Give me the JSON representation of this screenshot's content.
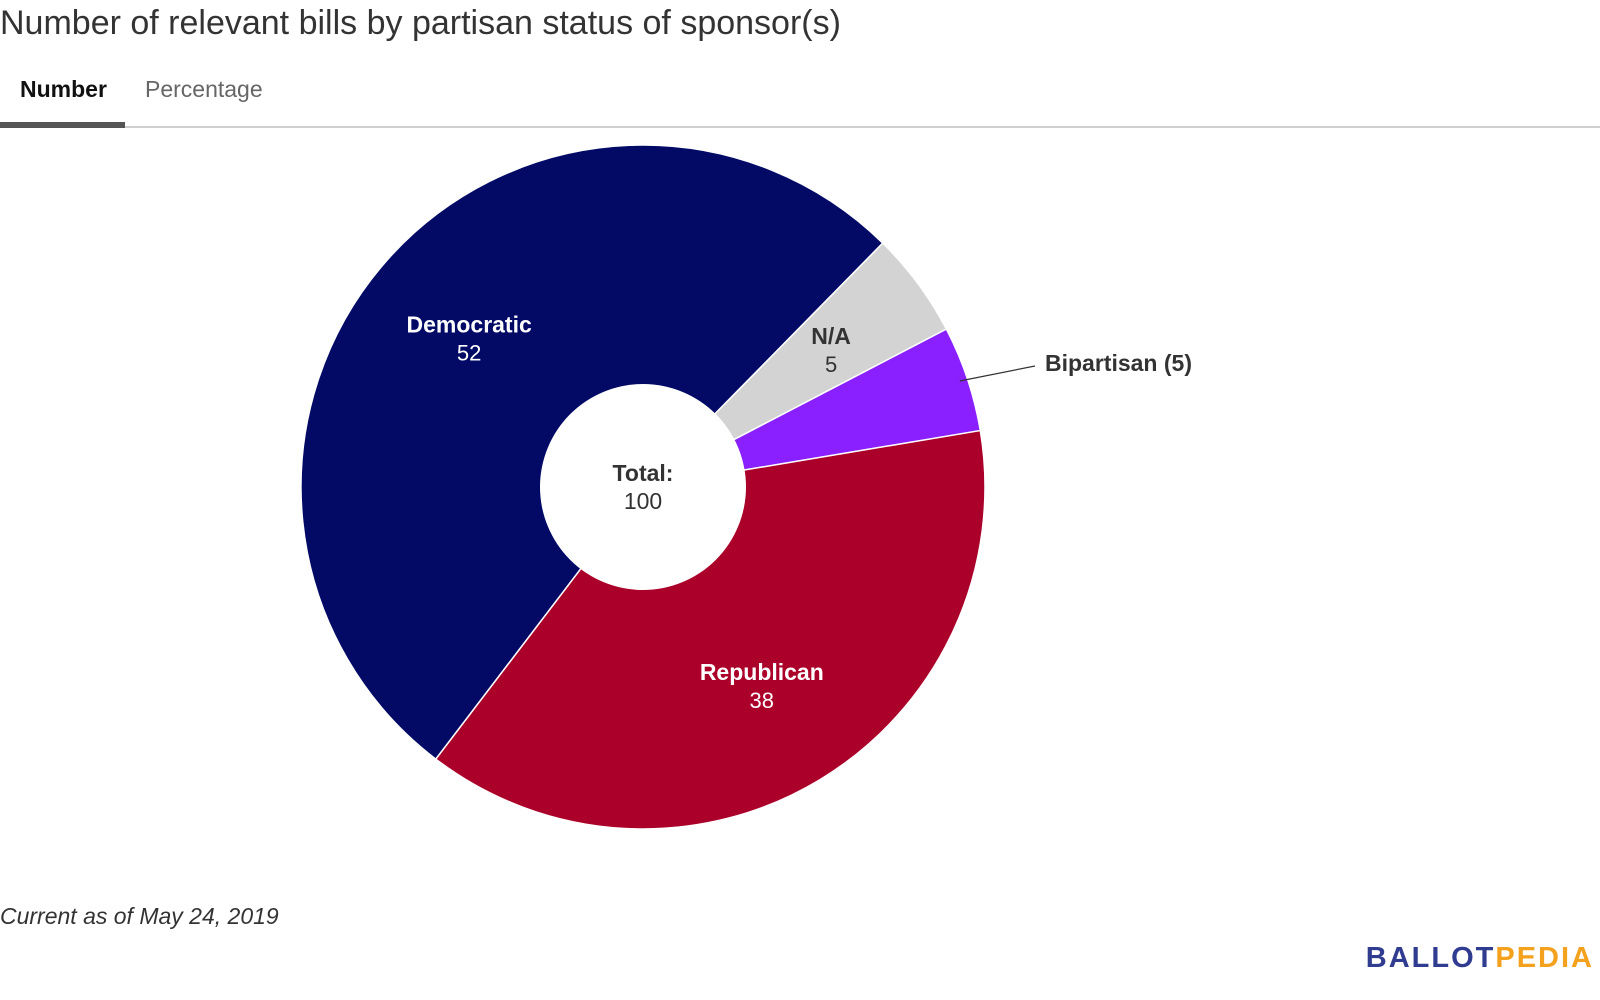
{
  "title": "Number of relevant bills by partisan status of sponsor(s)",
  "tabs": [
    {
      "label": "Number",
      "active": true
    },
    {
      "label": "Percentage",
      "active": false
    }
  ],
  "chart_data": {
    "type": "pie",
    "variant": "donut",
    "title": "Number of relevant bills by partisan status of sponsor(s)",
    "center_label": "Total:",
    "center_value": "100",
    "slices": [
      {
        "label": "N/A",
        "value": 5,
        "color": "#d3d3d3",
        "text_color": "#333333",
        "label_position": "inside"
      },
      {
        "label": "Bipartisan",
        "value": 5,
        "color": "#8a20ff",
        "text_color": "#333333",
        "label_position": "outside",
        "outside_text": "Bipartisan (5)"
      },
      {
        "label": "Republican",
        "value": 38,
        "color": "#ab0029",
        "text_color": "#ffffff",
        "label_position": "inside"
      },
      {
        "label": "Democratic",
        "value": 52,
        "color": "#020a66",
        "text_color": "#ffffff",
        "label_position": "inside"
      }
    ]
  },
  "footnote": "Current as of May 24, 2019",
  "logo": {
    "ballot": "BALLOT",
    "pedia": "PEDIA"
  }
}
